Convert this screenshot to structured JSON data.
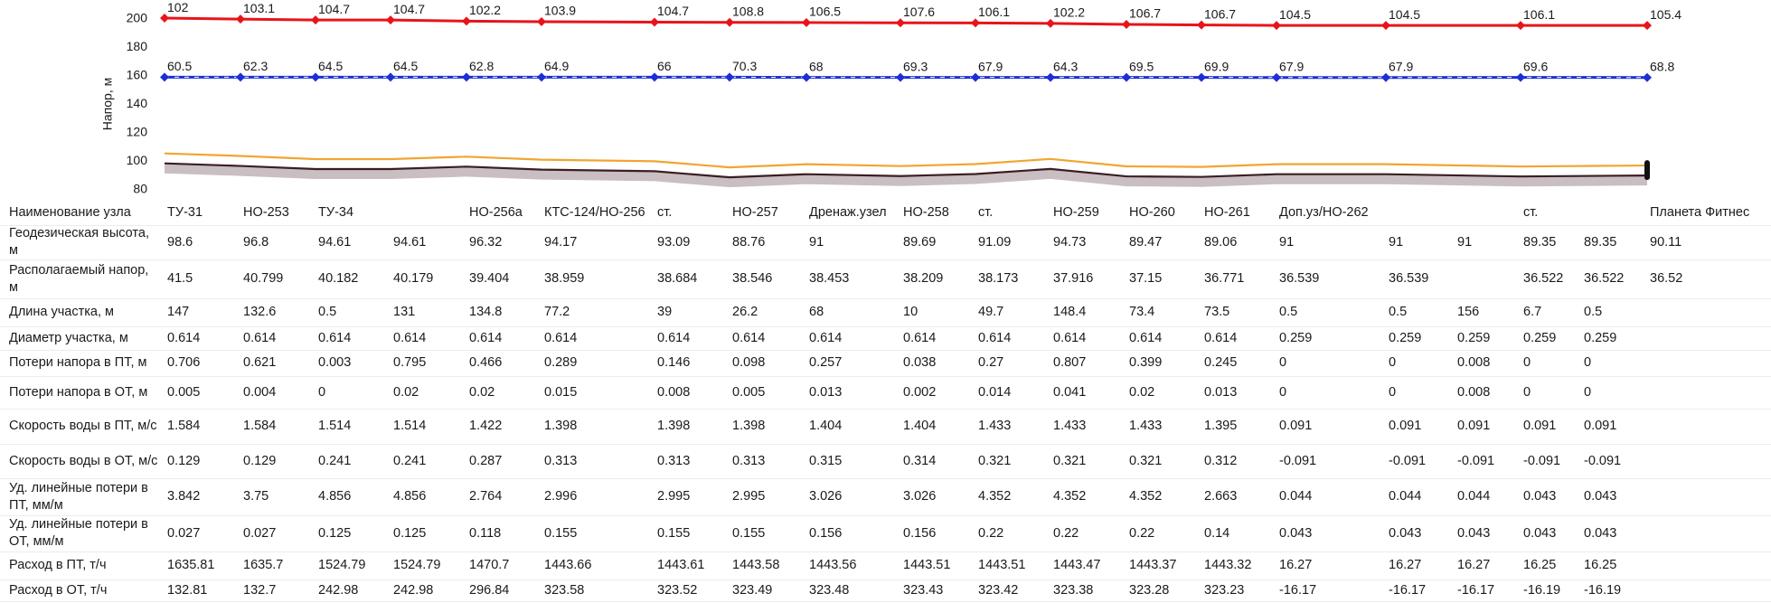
{
  "chart_data": {
    "type": "line",
    "ylabel": "Напор, м",
    "ylim": [
      80,
      200
    ],
    "yticks": [
      80,
      100,
      120,
      140,
      160,
      180,
      200
    ],
    "series": [
      {
        "color": "#e8141a",
        "marker": "diamond",
        "values": [
          200.6,
          199.9,
          199.3,
          199.3,
          198.5,
          198.1,
          197.8,
          197.6,
          197.5,
          197.3,
          197.2,
          196.9,
          196.2,
          195.8,
          195.5,
          195.5,
          195.5,
          195.5
        ],
        "point_labels": [
          "102",
          "103.1",
          "104.7",
          "104.7",
          "102.2",
          "103.9",
          "104.7",
          "108.8",
          "106.5",
          "107.6",
          "106.1",
          "102.2",
          "106.7",
          "106.7",
          "104.5",
          "104.5",
          "106.1",
          "105.4"
        ]
      },
      {
        "color": "#1c2fd6",
        "marker": "diamond",
        "dash": true,
        "values": [
          159.1,
          159.1,
          159.1,
          159.1,
          159.1,
          159.1,
          159.1,
          159.1,
          159,
          159,
          159,
          159,
          159,
          159,
          158.9,
          158.9,
          159,
          158.9
        ],
        "point_labels": [
          "60.5",
          "62.3",
          "64.5",
          "64.5",
          "62.8",
          "64.9",
          "66",
          "70.3",
          "68",
          "69.3",
          "67.9",
          "64.3",
          "69.5",
          "69.9",
          "67.9",
          "67.9",
          "69.6",
          "68.8"
        ]
      },
      {
        "color": "#f2a530",
        "values": [
          105.6,
          103.8,
          101.6,
          101.6,
          103.3,
          101.2,
          100.1,
          95.8,
          98,
          96.7,
          98.1,
          101.7,
          96.5,
          96.1,
          98,
          98,
          96.4,
          97.1
        ]
      },
      {
        "color": "#3a1e22",
        "values": [
          98.6,
          96.8,
          94.6,
          94.6,
          96.3,
          94.2,
          93.1,
          88.8,
          91,
          89.7,
          91.1,
          94.7,
          89.5,
          89.1,
          91,
          91,
          89.4,
          90.1
        ]
      },
      {
        "color": "#c9bec2",
        "fill_to": 3,
        "values": [
          91.6,
          89.8,
          87.6,
          87.6,
          89.3,
          87.2,
          86.1,
          81.8,
          84,
          82.7,
          84.1,
          87.7,
          82.5,
          82.1,
          84,
          84,
          82.4,
          83.1
        ]
      }
    ]
  },
  "table": {
    "rows": [
      {
        "label": "Наименование узла",
        "cells": [
          "ТУ-31",
          "НО-253",
          "ТУ-34",
          null,
          "НО-256а",
          "КТС-124/НО-256",
          "ст.",
          "НО-257",
          "Дренаж.узел",
          "НО-258",
          "ст.",
          "НО-259",
          "НО-260",
          "НО-261",
          "Доп.уз/НО-262",
          null,
          null,
          "ст.",
          null,
          "Планета Фитнес"
        ]
      },
      {
        "label": "Геодезическая высота, м",
        "cells": [
          98.6,
          96.8,
          94.61,
          94.61,
          96.32,
          94.17,
          93.09,
          88.76,
          91,
          89.69,
          91.09,
          94.73,
          89.47,
          89.06,
          91,
          91,
          91,
          89.35,
          89.35,
          90.11
        ]
      },
      {
        "label": "Располагаемый напор, м",
        "cells": [
          41.5,
          40.799,
          40.182,
          40.179,
          39.404,
          38.959,
          38.684,
          38.546,
          38.453,
          38.209,
          38.173,
          37.916,
          37.15,
          36.771,
          36.539,
          36.539,
          null,
          36.522,
          36.522,
          36.52
        ]
      },
      {
        "label": "Длина участка, м",
        "cells": [
          147,
          132.6,
          0.5,
          131,
          134.8,
          77.2,
          39,
          26.2,
          68,
          10,
          49.7,
          148.4,
          73.4,
          73.5,
          0.5,
          0.5,
          156,
          6.7,
          0.5,
          null
        ]
      },
      {
        "label": "Диаметр участка, м",
        "cells": [
          0.614,
          0.614,
          0.614,
          0.614,
          0.614,
          0.614,
          0.614,
          0.614,
          0.614,
          0.614,
          0.614,
          0.614,
          0.614,
          0.614,
          0.259,
          0.259,
          0.259,
          0.259,
          0.259,
          null
        ]
      },
      {
        "label": "Потери напора в ПТ, м",
        "cells": [
          0.706,
          0.621,
          0.003,
          0.795,
          0.466,
          0.289,
          0.146,
          0.098,
          0.257,
          0.038,
          0.27,
          0.807,
          0.399,
          0.245,
          0,
          0,
          0.008,
          0,
          0,
          null
        ]
      },
      {
        "label": "Потери напора в ОТ, м",
        "cells": [
          0.005,
          0.004,
          0,
          0.02,
          0.02,
          0.015,
          0.008,
          0.005,
          0.013,
          0.002,
          0.014,
          0.041,
          0.02,
          0.013,
          0,
          0,
          0.008,
          0,
          0,
          null
        ]
      },
      {
        "label": "Скорость воды в ПТ, м/с",
        "cells": [
          1.584,
          1.584,
          1.514,
          1.514,
          1.422,
          1.398,
          1.398,
          1.398,
          1.404,
          1.404,
          1.433,
          1.433,
          1.433,
          1.395,
          0.091,
          0.091,
          0.091,
          0.091,
          0.091,
          null
        ]
      },
      {
        "label": "Скорость воды в ОТ, м/с",
        "cells": [
          0.129,
          0.129,
          0.241,
          0.241,
          0.287,
          0.313,
          0.313,
          0.313,
          0.315,
          0.314,
          0.321,
          0.321,
          0.321,
          0.312,
          -0.091,
          -0.091,
          -0.091,
          -0.091,
          -0.091,
          null
        ]
      },
      {
        "label": "Уд. линейные потери в ПТ, мм/м",
        "cells": [
          3.842,
          3.75,
          4.856,
          4.856,
          2.764,
          2.996,
          2.995,
          2.995,
          3.026,
          3.026,
          4.352,
          4.352,
          4.352,
          2.663,
          0.044,
          0.044,
          0.044,
          0.043,
          0.043,
          null
        ]
      },
      {
        "label": "Уд. линейные потери в ОТ, мм/м",
        "cells": [
          0.027,
          0.027,
          0.125,
          0.125,
          0.118,
          0.155,
          0.155,
          0.155,
          0.156,
          0.156,
          0.22,
          0.22,
          0.22,
          0.14,
          0.043,
          0.043,
          0.043,
          0.043,
          0.043,
          null
        ]
      },
      {
        "label": "Расход в ПТ, т/ч",
        "cells": [
          1635.81,
          1635.7,
          1524.79,
          1524.79,
          1470.7,
          1443.66,
          1443.61,
          1443.58,
          1443.56,
          1443.51,
          1443.51,
          1443.47,
          1443.37,
          1443.32,
          16.27,
          16.27,
          16.27,
          16.25,
          16.25,
          null
        ]
      },
      {
        "label": "Расход в ОТ, т/ч",
        "cells": [
          132.81,
          132.7,
          242.98,
          242.98,
          296.84,
          323.58,
          323.52,
          323.49,
          323.48,
          323.43,
          323.42,
          323.38,
          323.28,
          323.23,
          -16.17,
          -16.17,
          -16.17,
          -16.19,
          -16.19,
          null
        ]
      }
    ]
  }
}
